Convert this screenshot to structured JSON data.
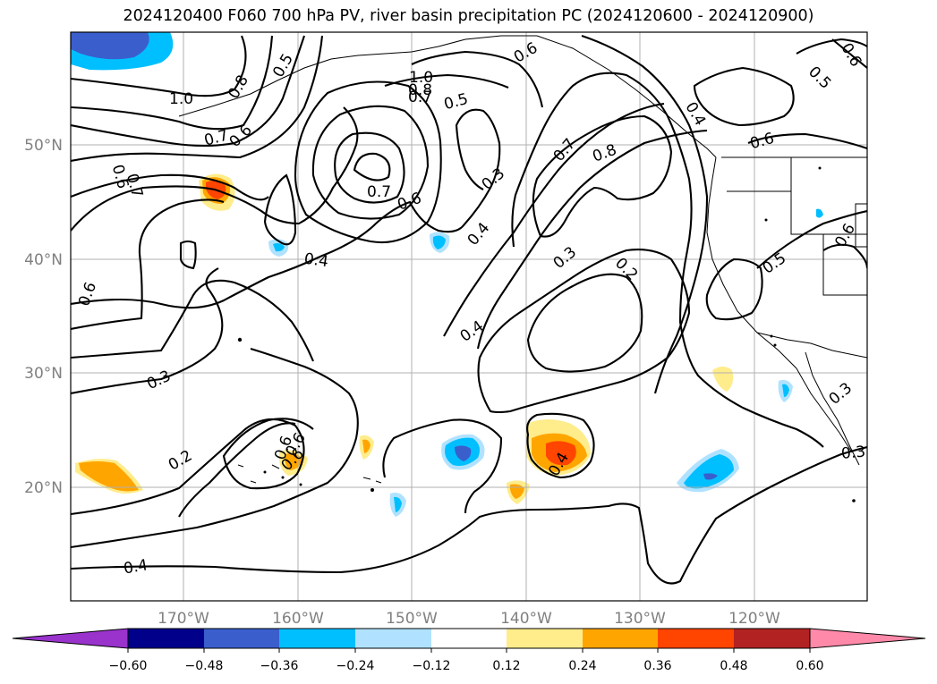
{
  "title": "2024120400 F060 700 hPa PV, river basin precipitation PC (2024120600 - 2024120900)",
  "map": {
    "lon_labels": [
      "170°W",
      "160°W",
      "150°W",
      "140°W",
      "130°W",
      "120°W"
    ],
    "lat_labels": [
      "50°N",
      "40°N",
      "30°N",
      "20°N"
    ],
    "axis_label_color": "#808080",
    "contour_labels": [
      {
        "text": "1.0"
      },
      {
        "text": "0.8"
      },
      {
        "text": "0.5"
      },
      {
        "text": "0.7"
      },
      {
        "text": "0.6"
      },
      {
        "text": "0.6"
      },
      {
        "text": "0.7"
      },
      {
        "text": "0.6"
      },
      {
        "text": "0.4"
      },
      {
        "text": "0.6"
      },
      {
        "text": "0.3"
      },
      {
        "text": "0.2"
      },
      {
        "text": "0.6"
      },
      {
        "text": "1.0"
      },
      {
        "text": "0.8"
      },
      {
        "text": "0.7"
      },
      {
        "text": "0.5"
      },
      {
        "text": "0.6"
      },
      {
        "text": "0.7"
      },
      {
        "text": "0.6"
      },
      {
        "text": "0.3"
      },
      {
        "text": "0.4"
      },
      {
        "text": "0.3"
      },
      {
        "text": "0.2"
      },
      {
        "text": "0.4"
      },
      {
        "text": "0.7"
      },
      {
        "text": "0.8"
      },
      {
        "text": "0.4"
      },
      {
        "text": "0.6"
      },
      {
        "text": "0.5"
      },
      {
        "text": "0.6"
      },
      {
        "text": "0.6"
      },
      {
        "text": "0.5"
      },
      {
        "text": "0.3"
      },
      {
        "text": "0.3"
      },
      {
        "text": "0.6"
      },
      {
        "text": "0.4"
      },
      {
        "text": "0.4"
      }
    ]
  },
  "colorbar": {
    "colors": [
      "#9933cc",
      "#00008b",
      "#3a5fcd",
      "#00bfff",
      "#b0e2ff",
      "#ffffff",
      "#ffec8b",
      "#ffa500",
      "#ff4500",
      "#b22222",
      "#ff89a8"
    ],
    "ticks": [
      "−0.60",
      "−0.48",
      "−0.36",
      "−0.24",
      "−0.12",
      "0.12",
      "0.24",
      "0.36",
      "0.48",
      "0.60"
    ]
  }
}
